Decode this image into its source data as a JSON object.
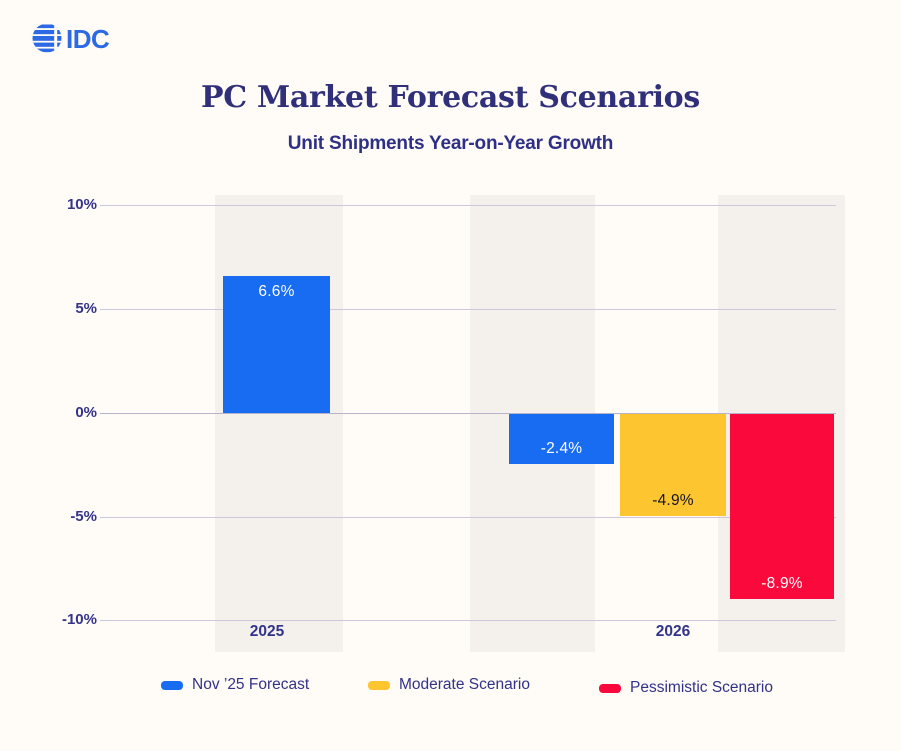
{
  "logo": {
    "alt": "IDC",
    "color": "#2b69e5"
  },
  "header": {
    "title": "PC Market Forecast Scenarios",
    "subtitle": "Unit Shipments Year-on-Year Growth"
  },
  "chart_data": {
    "type": "bar",
    "title": "PC Market Forecast Scenarios",
    "subtitle": "Unit Shipments Year-on-Year Growth",
    "unit": "%",
    "categories": [
      "2025",
      "2026"
    ],
    "series": [
      {
        "name": "Nov ’25 Forecast",
        "color": "#176cf1",
        "values": [
          6.6,
          -2.4
        ]
      },
      {
        "name": "Moderate Scenario",
        "color": "#fdc52f",
        "values": [
          null,
          -4.9
        ]
      },
      {
        "name": "Pessimistic Scenario",
        "color": "#fa0a3c",
        "values": [
          null,
          -8.9
        ]
      }
    ],
    "bars": [
      {
        "id": "2025-nov-forecast",
        "category": "2025",
        "series": "Nov ’25 Forecast",
        "value": 6.6,
        "label": "6.6%",
        "color": "#176cf1",
        "label_color": "#ffffff"
      },
      {
        "id": "2026-nov-forecast",
        "category": "2026",
        "series": "Nov ’25 Forecast",
        "value": -2.4,
        "label": "-2.4%",
        "color": "#176cf1",
        "label_color": "#ffffff"
      },
      {
        "id": "2026-moderate",
        "category": "2026",
        "series": "Moderate Scenario",
        "value": -4.9,
        "label": "-4.9%",
        "color": "#fdc52f",
        "label_color": "#15152a"
      },
      {
        "id": "2026-pessimistic",
        "category": "2026",
        "series": "Pessimistic Scenario",
        "value": -8.9,
        "label": "-8.9%",
        "color": "#fa0a3c",
        "label_color": "#ffffff"
      }
    ],
    "ylim": [
      -10,
      10
    ],
    "yticks": [
      "10%",
      "5%",
      "0%",
      "-5%",
      "-10%"
    ],
    "grid": "horizontal",
    "legend_position": "bottom"
  },
  "legend": {
    "items": [
      {
        "label": "Nov ’25 Forecast",
        "color": "#176cf1"
      },
      {
        "label": "Moderate Scenario",
        "color": "#fdc52f"
      },
      {
        "label": "Pessimistic Scenario",
        "color": "#fa0a3c"
      }
    ]
  },
  "colors": {
    "background": "#fffbf6",
    "band": "#f4f0eb",
    "gridline": "#cac8dc",
    "navy_text": "#31328a",
    "title_navy": "#2f3079"
  }
}
